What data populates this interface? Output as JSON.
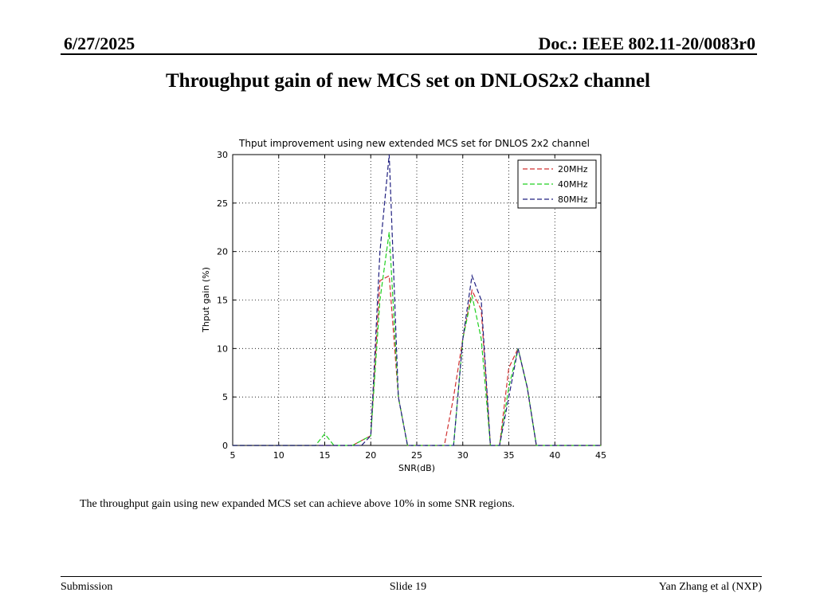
{
  "header": {
    "date": "6/27/2025",
    "doc": "Doc.: IEEE 802.11-20/0083r0"
  },
  "slide_title": "Throughput gain of new MCS set on DNLOS2x2 channel",
  "caption": "The throughput gain using new expanded MCS set can achieve above 10% in some SNR regions.",
  "footer": {
    "left": "Submission",
    "center": "Slide 19",
    "right": "Yan Zhang et al (NXP)"
  },
  "chart_data": {
    "type": "line",
    "title": "Thput improvement using new extended MCS set for DNLOS 2x2 channel",
    "xlabel": "SNR(dB)",
    "ylabel": "Thput gain (%)",
    "xlim": [
      5,
      45
    ],
    "ylim": [
      0,
      30
    ],
    "xticks": [
      5,
      10,
      15,
      20,
      25,
      30,
      35,
      40,
      45
    ],
    "yticks": [
      0,
      5,
      10,
      15,
      20,
      25,
      30
    ],
    "grid": true,
    "legend_position": "top-right",
    "x": [
      5,
      6,
      7,
      8,
      9,
      10,
      11,
      12,
      13,
      14,
      15,
      16,
      17,
      18,
      19,
      20,
      21,
      22,
      23,
      24,
      25,
      26,
      27,
      28,
      29,
      30,
      31,
      32,
      33,
      34,
      35,
      36,
      37,
      38,
      39,
      40,
      41,
      42,
      43,
      44,
      45
    ],
    "series": [
      {
        "name": "20MHz",
        "color": "#d03030",
        "dash": "dashed",
        "values": [
          0,
          0,
          0,
          0,
          0,
          0,
          0,
          0,
          0,
          0,
          0,
          0,
          0,
          0,
          0.5,
          1,
          17,
          17.5,
          5,
          0,
          0,
          0,
          0,
          0,
          5,
          11,
          16,
          14,
          0,
          0,
          8,
          10,
          6,
          0,
          0,
          0,
          0,
          0,
          0,
          0,
          0
        ]
      },
      {
        "name": "40MHz",
        "color": "#20d020",
        "dash": "dashed",
        "values": [
          0,
          0,
          0,
          0,
          0,
          0,
          0,
          0,
          0,
          0,
          1.2,
          0,
          0,
          0,
          0.5,
          1,
          15,
          22,
          5,
          0,
          0,
          0,
          0,
          0,
          0,
          11,
          15.5,
          11,
          0,
          0,
          6,
          10,
          6,
          0,
          0,
          0,
          0,
          0,
          0,
          0,
          0
        ]
      },
      {
        "name": "80MHz",
        "color": "#202080",
        "dash": "dashed",
        "values": [
          0,
          0,
          0,
          0,
          0,
          0,
          0,
          0,
          0,
          0,
          0,
          0,
          0,
          0,
          0,
          1,
          20,
          30,
          5,
          0,
          0,
          0,
          0,
          0,
          0,
          11,
          17.5,
          15,
          0,
          0,
          5,
          10,
          6,
          0,
          0,
          0,
          0,
          0,
          0,
          0,
          0
        ]
      }
    ]
  }
}
